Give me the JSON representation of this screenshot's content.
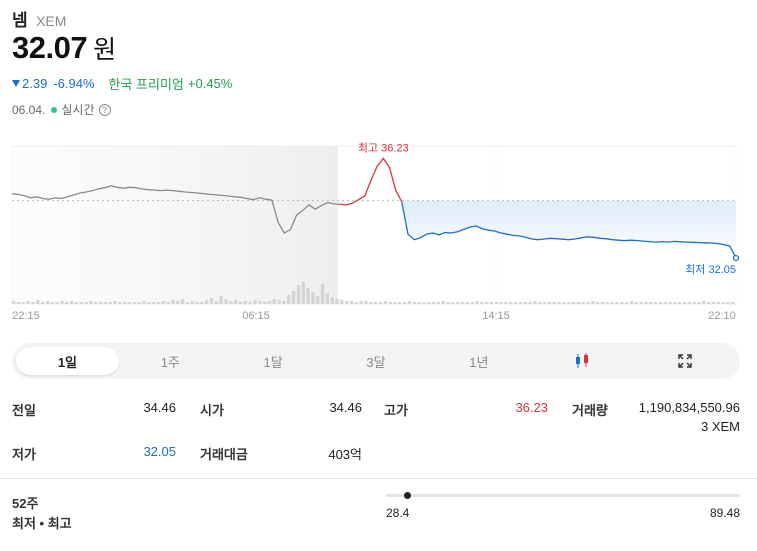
{
  "coin": {
    "name": "넴",
    "symbol": "XEM"
  },
  "price": {
    "value": "32.07",
    "unit": "원"
  },
  "change": {
    "amount": "2.39",
    "percent": "-6.94%",
    "direction": "down"
  },
  "premium": {
    "label": "한국 프리미엄",
    "value": "+0.45%"
  },
  "time": {
    "date": "06.04.",
    "label": "실시간",
    "help_icon": "question-circle-icon"
  },
  "chart_data": {
    "type": "line",
    "x_ticks": [
      "22:15",
      "06:15",
      "14:15",
      "22:10"
    ],
    "annotations": {
      "high": "최고 36.23",
      "low": "최저 32.05"
    },
    "high": 36.23,
    "low": 32.05,
    "reference_line": 34.46,
    "series": [
      {
        "values": [
          34.75,
          34.72,
          34.66,
          34.58,
          34.62,
          34.55,
          34.52,
          34.58,
          34.55,
          34.62,
          34.7,
          34.78,
          34.82,
          34.88,
          34.95,
          35.0,
          35.08,
          35.02,
          34.98,
          35.02,
          35.0,
          34.95,
          34.92,
          34.9,
          34.88,
          34.9,
          34.88,
          34.85,
          34.82,
          34.8,
          34.78,
          34.75,
          34.72,
          34.7,
          34.68,
          34.65,
          34.62,
          34.6,
          34.55,
          34.5,
          34.58,
          34.52,
          34.48,
          33.55,
          33.1,
          33.25,
          33.85,
          34.05,
          34.28,
          34.1,
          34.25,
          34.38,
          34.32,
          34.3,
          34.28,
          34.35,
          34.5,
          34.65,
          35.3,
          35.9,
          36.23,
          35.85,
          34.9,
          34.4,
          33.05,
          32.82,
          32.9,
          33.05,
          33.1,
          33.02,
          33.12,
          33.1,
          33.15,
          33.25,
          33.35,
          33.4,
          33.28,
          33.22,
          33.18,
          33.1,
          33.05,
          33.0,
          32.98,
          32.92,
          32.85,
          32.82,
          32.85,
          32.88,
          32.86,
          32.84,
          32.82,
          32.85,
          32.9,
          32.94,
          32.92,
          32.88,
          32.86,
          32.82,
          32.8,
          32.78,
          32.8,
          32.78,
          32.76,
          32.74,
          32.72,
          32.74,
          32.72,
          32.75,
          32.73,
          32.72,
          32.71,
          32.7,
          32.69,
          32.68,
          32.66,
          32.62,
          32.55,
          32.05
        ]
      }
    ]
  },
  "tabs": [
    {
      "label": "1일",
      "active": true
    },
    {
      "label": "1주",
      "active": false
    },
    {
      "label": "1달",
      "active": false
    },
    {
      "label": "3달",
      "active": false
    },
    {
      "label": "1년",
      "active": false
    }
  ],
  "tab_icons": {
    "candle": "candlestick-icon",
    "expand": "expand-icon"
  },
  "stats": {
    "prev_close": {
      "label": "전일",
      "value": "34.46"
    },
    "open": {
      "label": "시가",
      "value": "34.46"
    },
    "high": {
      "label": "고가",
      "value": "36.23"
    },
    "volume": {
      "label": "거래량",
      "value": "1,190,834,550.96",
      "unit": "3 XEM"
    },
    "low": {
      "label": "저가",
      "value": "32.05"
    },
    "trade_amount": {
      "label": "거래대금",
      "value": "403억"
    }
  },
  "week52": {
    "title": "52주",
    "subtitle": "최저 • 최고",
    "low": "28.4",
    "high": "89.48",
    "current_ratio": 0.06
  },
  "colors": {
    "up": "#e0313b",
    "down": "#1a6fcf",
    "premium": "#1aa14b",
    "history": "#8a8a8a"
  }
}
